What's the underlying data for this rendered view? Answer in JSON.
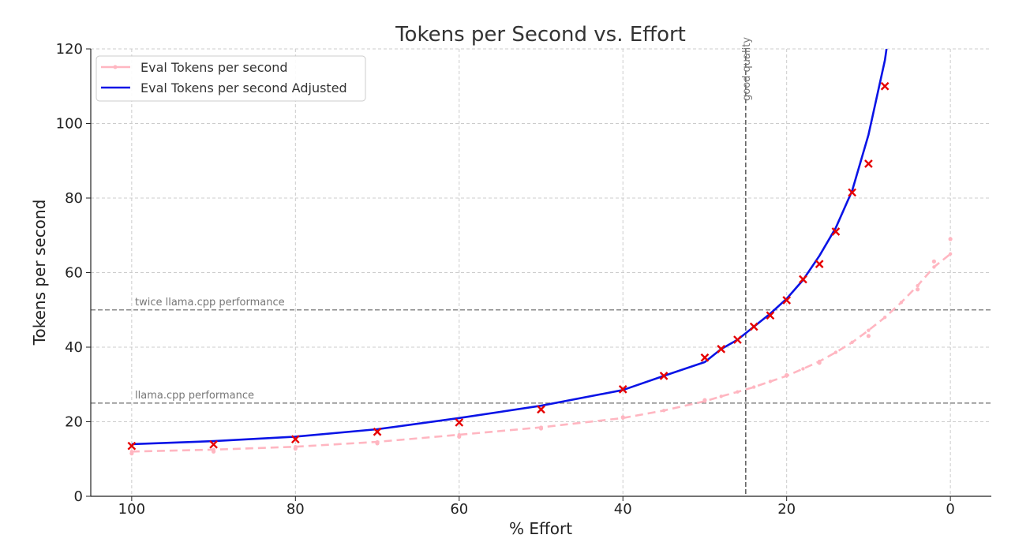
{
  "chart_data": {
    "type": "line",
    "title": "Tokens per Second vs. Effort",
    "xlabel": "% Effort",
    "ylabel": "Tokens per second",
    "xlim": [
      105,
      -5
    ],
    "ylim": [
      0,
      120
    ],
    "x_ticks": [
      100,
      80,
      60,
      40,
      20,
      0
    ],
    "y_ticks": [
      0,
      20,
      40,
      60,
      80,
      100,
      120
    ],
    "grid": true,
    "legend_position": "top-left",
    "reference_lines": [
      {
        "axis": "y",
        "value": 50,
        "label": "twice llama.cpp performance"
      },
      {
        "axis": "y",
        "value": 25,
        "label": "llama.cpp performance"
      },
      {
        "axis": "x",
        "value": 25,
        "label": "good quality"
      }
    ],
    "series": [
      {
        "name": "Eval Tokens per second",
        "color": "#ffb6c1",
        "style": "dashed",
        "x": [
          100,
          90,
          80,
          70,
          60,
          50,
          40,
          35,
          30,
          28,
          26,
          24,
          22,
          20,
          18,
          16,
          14,
          12,
          10,
          8,
          6,
          4,
          2,
          0
        ],
        "y": [
          12.0,
          12.5,
          13.3,
          14.6,
          16.5,
          18.5,
          21.0,
          23.0,
          25.5,
          26.8,
          28.0,
          29.3,
          30.8,
          32.3,
          34.2,
          36.2,
          38.6,
          41.3,
          44.5,
          48.0,
          52.0,
          56.5,
          61.5,
          65.0
        ]
      },
      {
        "name": "Eval Tokens per second Adjusted",
        "color": "#0a14e6",
        "style": "solid",
        "x": [
          100,
          90,
          80,
          70,
          60,
          50,
          40,
          35,
          30,
          28,
          26,
          24,
          22,
          20,
          18,
          16,
          14,
          12,
          10,
          8,
          7.8
        ],
        "y": [
          14.0,
          14.8,
          16.0,
          18.0,
          21.0,
          24.3,
          28.5,
          32.3,
          36.0,
          39.5,
          42.0,
          45.5,
          49.0,
          53.0,
          58.0,
          64.5,
          72.0,
          82.0,
          97.0,
          117.0,
          120.0
        ]
      }
    ],
    "markers": {
      "color": "#e60000",
      "x": [
        100,
        90,
        80,
        70,
        60,
        50,
        40,
        35,
        30,
        28,
        26,
        24,
        22,
        20,
        18,
        16,
        14,
        12,
        10,
        8
      ],
      "y": [
        13.5,
        13.9,
        15.3,
        17.3,
        19.8,
        23.3,
        28.7,
        32.3,
        37.2,
        39.5,
        42.0,
        45.5,
        48.5,
        52.6,
        58.2,
        62.3,
        71.0,
        81.5,
        89.2,
        110.0
      ]
    },
    "faint_points": {
      "color": "#ffb6c1",
      "x": [
        100,
        90,
        80,
        70,
        60,
        50,
        40,
        30,
        20,
        16,
        10,
        4,
        2,
        0
      ],
      "y": [
        11.5,
        12.0,
        12.8,
        14.2,
        16.0,
        18.2,
        21.2,
        25.8,
        32.5,
        35.8,
        43.0,
        55.5,
        63.0,
        69.0
      ]
    }
  }
}
